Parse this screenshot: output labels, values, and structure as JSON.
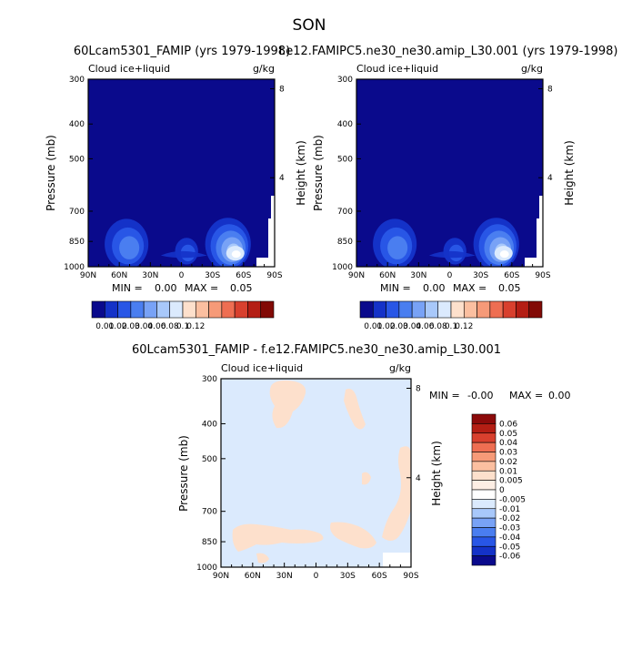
{
  "page": {
    "season": "SON"
  },
  "chart_data": [
    {
      "type": "heatmap",
      "title": "60Lcam5301_FAMIP (yrs 1979-1998)",
      "left_string": "Cloud ice+liquid",
      "right_string": "g/kg",
      "xlabel": "",
      "ylabel": "Pressure (mb)",
      "y2label": "Height (km)",
      "x_ticks": [
        "90N",
        "60N",
        "30N",
        "0",
        "30S",
        "60S",
        "90S"
      ],
      "y_ticks": [
        "300",
        "400",
        "500",
        "700",
        "850",
        "1000"
      ],
      "y2_ticks": [
        "8",
        "4"
      ],
      "min_text": "MIN =",
      "min_value": "0.00",
      "max_text": "MAX =",
      "max_value": "0.05",
      "features": [
        {
          "lat": 53,
          "p": 865,
          "value": 0.03
        },
        {
          "lat": -45,
          "p": 865,
          "value": 0.05
        },
        {
          "lat": -5,
          "p": 905,
          "value": 0.02
        }
      ],
      "colorbar": {
        "labels": [
          "0.01",
          "0.02",
          "0.03",
          "0.04",
          "0.06",
          "0.08",
          "0.1",
          "0.12"
        ],
        "colors": [
          "#0a0a8c",
          "#1432c8",
          "#2856e6",
          "#4a7ef0",
          "#78a2f6",
          "#a8c8fa",
          "#dbeafd",
          "#fde0cc",
          "#fbbfa0",
          "#f69a78",
          "#ee6e52",
          "#d8402e",
          "#b41e14",
          "#820a06"
        ]
      }
    },
    {
      "type": "heatmap",
      "title": "f.e12.FAMIPC5.ne30_ne30.amip_L30.001 (yrs 1979-1998)",
      "left_string": "Cloud ice+liquid",
      "right_string": "g/kg",
      "xlabel": "",
      "ylabel": "Pressure (mb)",
      "y2label": "Height (km)",
      "x_ticks": [
        "90N",
        "60N",
        "30N",
        "0",
        "30S",
        "60S",
        "90S"
      ],
      "y_ticks": [
        "300",
        "400",
        "500",
        "700",
        "850",
        "1000"
      ],
      "y2_ticks": [
        "8",
        "4"
      ],
      "min_text": "MIN =",
      "min_value": "0.00",
      "max_text": "MAX =",
      "max_value": "0.05",
      "features": [
        {
          "lat": 53,
          "p": 865,
          "value": 0.03
        },
        {
          "lat": -45,
          "p": 865,
          "value": 0.05
        },
        {
          "lat": -5,
          "p": 905,
          "value": 0.02
        }
      ],
      "colorbar": {
        "labels": [
          "0.01",
          "0.02",
          "0.03",
          "0.04",
          "0.06",
          "0.08",
          "0.1",
          "0.12"
        ],
        "colors": [
          "#0a0a8c",
          "#1432c8",
          "#2856e6",
          "#4a7ef0",
          "#78a2f6",
          "#a8c8fa",
          "#dbeafd",
          "#fde0cc",
          "#fbbfa0",
          "#f69a78",
          "#ee6e52",
          "#d8402e",
          "#b41e14",
          "#820a06"
        ]
      }
    },
    {
      "type": "heatmap",
      "title": "60Lcam5301_FAMIP - f.e12.FAMIPC5.ne30_ne30.amip_L30.001",
      "left_string": "Cloud ice+liquid",
      "right_string": "g/kg",
      "xlabel": "",
      "ylabel": "Pressure (mb)",
      "y2label": "Height (km)",
      "x_ticks": [
        "90N",
        "60N",
        "30N",
        "0",
        "30S",
        "60S",
        "90S"
      ],
      "y_ticks": [
        "300",
        "400",
        "500",
        "700",
        "850",
        "1000"
      ],
      "y2_ticks": [
        "8",
        "4"
      ],
      "min_text": "MIN =",
      "min_value": "-0.00",
      "max_text": "MAX =",
      "max_value": "0.00",
      "background_value": "0",
      "colorbar": {
        "labels": [
          "0.06",
          "0.05",
          "0.04",
          "0.03",
          "0.02",
          "0.01",
          "0.005",
          "0",
          "-0.005",
          "-0.01",
          "-0.02",
          "-0.03",
          "-0.04",
          "-0.05",
          "-0.06"
        ],
        "colors": [
          "#8c0a0a",
          "#b41e14",
          "#d8402e",
          "#ee6e52",
          "#f69a78",
          "#fbbfa0",
          "#fde0cc",
          "#fdeee4",
          "#ffffff",
          "#dbeafd",
          "#a8c8fa",
          "#78a2f6",
          "#4a7ef0",
          "#2856e6",
          "#1432c8",
          "#0a0a8c"
        ]
      }
    }
  ]
}
